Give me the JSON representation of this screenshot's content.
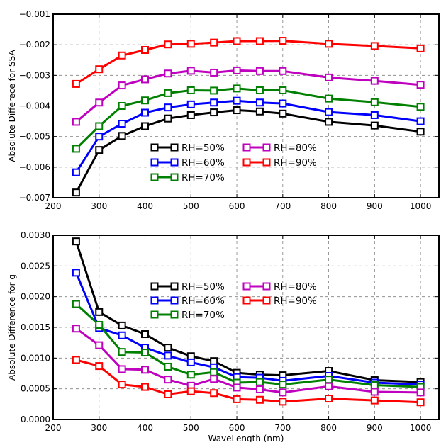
{
  "chart_data": [
    {
      "type": "line",
      "title": "",
      "xlabel": "",
      "ylabel": "Absolute Differece for SSA",
      "xlim": [
        200,
        1040
      ],
      "ylim": [
        -0.007,
        -0.001
      ],
      "xticks": [
        "200",
        "300",
        "400",
        "500",
        "600",
        "700",
        "800",
        "900",
        "1000"
      ],
      "yticks": [
        "−0.007",
        "−0.006",
        "−0.005",
        "−0.004",
        "−0.003",
        "−0.002",
        "−0.001"
      ],
      "grid": true,
      "legend_position": "center",
      "x": [
        250,
        300,
        350,
        400,
        450,
        500,
        550,
        600,
        650,
        700,
        800,
        900,
        1000
      ],
      "series": [
        {
          "name": "RH=50%",
          "color": "#000000",
          "values": [
            -0.00683,
            -0.00544,
            -0.00498,
            -0.00466,
            -0.00441,
            -0.0043,
            -0.00421,
            -0.00414,
            -0.00418,
            -0.00425,
            -0.00452,
            -0.00464,
            -0.00484
          ]
        },
        {
          "name": "RH=60%",
          "color": "#0000ff",
          "values": [
            -0.00617,
            -0.005,
            -0.00458,
            -0.00422,
            -0.00405,
            -0.00395,
            -0.00389,
            -0.00383,
            -0.00389,
            -0.00392,
            -0.0042,
            -0.0043,
            -0.0045
          ]
        },
        {
          "name": "RH=70%",
          "color": "#008000",
          "values": [
            -0.0054,
            -0.00466,
            -0.004,
            -0.00382,
            -0.00358,
            -0.00349,
            -0.0035,
            -0.00343,
            -0.00349,
            -0.00349,
            -0.00376,
            -0.00388,
            -0.00403
          ]
        },
        {
          "name": "RH=80%",
          "color": "#bf00bf",
          "values": [
            -0.00452,
            -0.00389,
            -0.00333,
            -0.00313,
            -0.00294,
            -0.00285,
            -0.00291,
            -0.00284,
            -0.00286,
            -0.00286,
            -0.00307,
            -0.00318,
            -0.00331
          ]
        },
        {
          "name": "RH=90%",
          "color": "#ff0000",
          "values": [
            -0.00328,
            -0.0028,
            -0.00235,
            -0.00217,
            -0.00199,
            -0.00197,
            -0.00193,
            -0.00188,
            -0.00188,
            -0.00187,
            -0.00197,
            -0.00204,
            -0.00212
          ]
        }
      ]
    },
    {
      "type": "line",
      "title": "",
      "xlabel": "WaveLength (nm)",
      "ylabel": "Absolute Difference for g",
      "xlim": [
        200,
        1040
      ],
      "ylim": [
        0,
        0.003
      ],
      "xticks": [
        "200",
        "300",
        "400",
        "500",
        "600",
        "700",
        "800",
        "900",
        "1000"
      ],
      "yticks": [
        "0.0000",
        "0.0005",
        "0.0010",
        "0.0015",
        "0.0020",
        "0.0025",
        "0.0030"
      ],
      "grid": true,
      "legend_position": "upper center",
      "x": [
        250,
        300,
        350,
        400,
        450,
        500,
        550,
        600,
        650,
        700,
        800,
        900,
        1000
      ],
      "series": [
        {
          "name": "RH=50%",
          "color": "#000000",
          "values": [
            0.0029,
            0.00175,
            0.00153,
            0.00139,
            0.00117,
            0.00103,
            0.00095,
            0.00076,
            0.00073,
            0.00072,
            0.00079,
            0.00064,
            0.00061
          ]
        },
        {
          "name": "RH=60%",
          "color": "#0000ff",
          "values": [
            0.00239,
            0.00149,
            0.00137,
            0.00117,
            0.00104,
            0.00093,
            0.00085,
            0.00069,
            0.00068,
            0.00063,
            0.00071,
            0.0006,
            0.00057
          ]
        },
        {
          "name": "RH=70%",
          "color": "#008000",
          "values": [
            0.00188,
            0.00154,
            0.0011,
            0.00109,
            0.00086,
            0.00073,
            0.00077,
            0.0006,
            0.00061,
            0.00057,
            0.00065,
            0.00056,
            0.00053
          ]
        },
        {
          "name": "RH=80%",
          "color": "#bf00bf",
          "values": [
            0.00148,
            0.00121,
            0.00082,
            0.00081,
            0.00065,
            0.00055,
            0.00066,
            0.00052,
            0.00049,
            0.00044,
            0.00054,
            0.00045,
            0.00044
          ]
        },
        {
          "name": "RH=90%",
          "color": "#ff0000",
          "values": [
            0.00097,
            0.00087,
            0.00057,
            0.00053,
            0.00041,
            0.00046,
            0.00043,
            0.00033,
            0.00032,
            0.00029,
            0.00034,
            0.00031,
            0.00028
          ]
        }
      ]
    }
  ]
}
